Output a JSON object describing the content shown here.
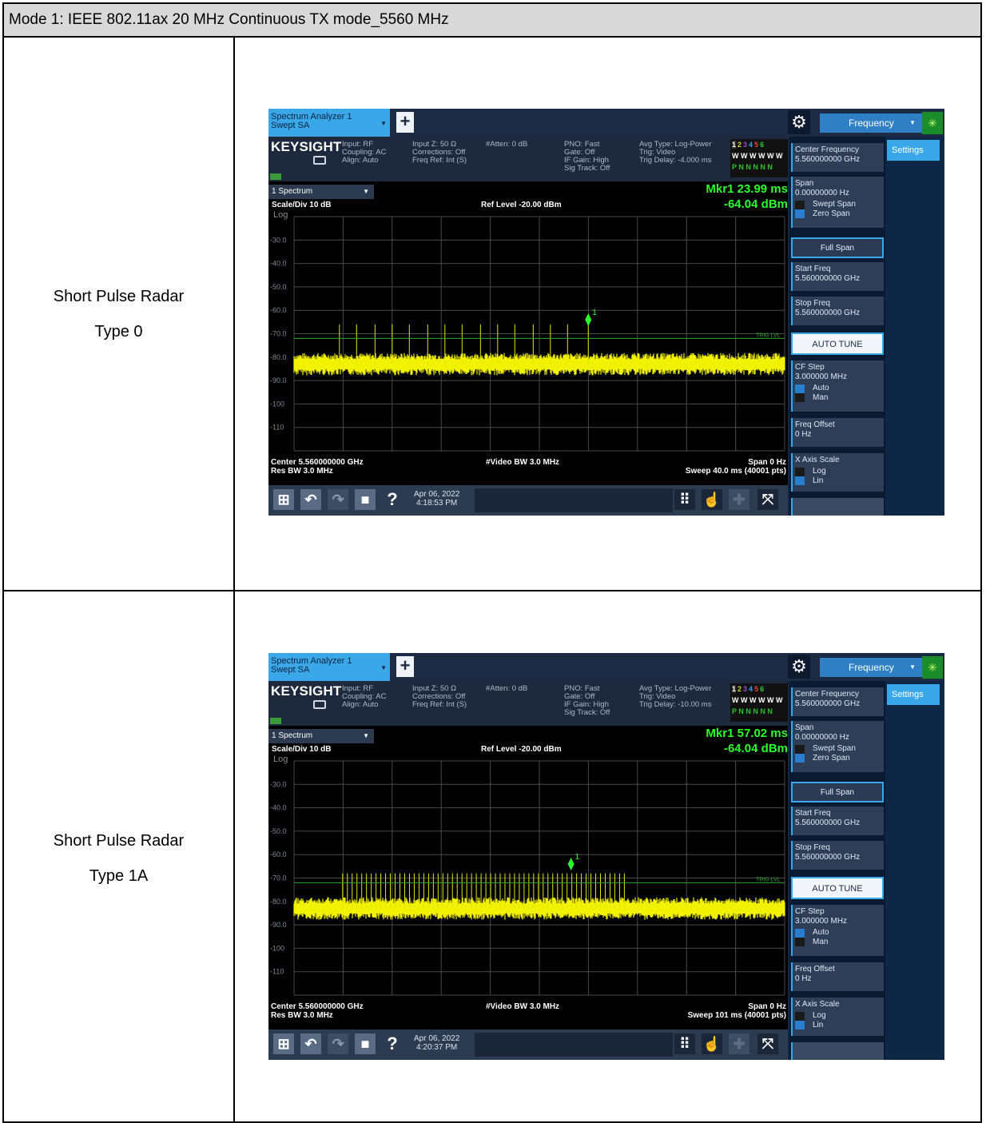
{
  "document": {
    "title": "Mode 1: IEEE 802.11ax 20 MHz Continuous TX mode_5560 MHz",
    "rows": [
      {
        "label_line1": "Short Pulse Radar",
        "label_line2": "Type 0"
      },
      {
        "label_line1": "Short Pulse Radar",
        "label_line2": "Type 1A"
      }
    ]
  },
  "analyzers": [
    {
      "tab_title": "Spectrum Analyzer 1",
      "tab_subtitle": "Swept SA",
      "menu_label": "Frequency",
      "brand": "KEYSIGHT",
      "info_col1": "Input: RF\nCoupling: AC\nAlign: Auto",
      "info_col2": "Input Z: 50 Ω\nCorrections: Off\nFreq Ref: Int (S)",
      "info_col3": "#Atten: 0 dB",
      "info_col4": "PNO: Fast\nGate: Off\nIF Gain: High\nSig Track: Off",
      "info_col5": "Avg Type: Log-Power\nTrig: Video\nTrig Delay: -4.000 ms",
      "trace_numbers": [
        "1",
        "2",
        "3",
        "4",
        "5",
        "6"
      ],
      "trace_row2": "W W W W W W",
      "trace_row3": "P N N N N N",
      "window_select": "1 Spectrum",
      "scale_div": "Scale/Div 10 dB",
      "log_label": "Log",
      "ref_level": "Ref Level -20.00 dBm",
      "marker_time": "Mkr1  23.99 ms",
      "marker_level": "-64.04 dBm",
      "footer_center": "Center 5.560000000 GHz",
      "footer_rbw": "Res BW 3.0 MHz",
      "footer_vbw": "#Video BW 3.0 MHz",
      "footer_span": "Span 0 Hz",
      "footer_sweep": "Sweep 40.0 ms (40001 pts)",
      "date": "Apr 06, 2022",
      "time": "4:18:53 PM",
      "settings_tab": "Settings",
      "center_freq_label": "Center Frequency",
      "center_freq_value": "5.560000000 GHz",
      "span_label": "Span",
      "span_value": "0.00000000 Hz",
      "swept_span": "Swept Span",
      "zero_span": "Zero Span",
      "full_span": "Full Span",
      "start_freq_label": "Start Freq",
      "start_freq_value": "5.560000000 GHz",
      "stop_freq_label": "Stop Freq",
      "stop_freq_value": "5.560000000 GHz",
      "auto_tune": "AUTO TUNE",
      "cf_step_label": "CF Step",
      "cf_step_value": "3.000000 MHz",
      "auto": "Auto",
      "man": "Man",
      "freq_offset_label": "Freq Offset",
      "freq_offset_value": "0 Hz",
      "x_axis_scale_label": "X Axis Scale",
      "log": "Log",
      "lin": "Lin",
      "trig_lvl": "TRIG LVL",
      "marker_id": "1",
      "y_ticks": [
        "-30.0",
        "-40.0",
        "-50.0",
        "-60.0",
        "-70.0",
        "-80.0",
        "-90.0",
        "-100",
        "-110"
      ],
      "chart_data": {
        "type": "line",
        "ylim": [
          -120,
          -20
        ],
        "xlim": [
          0,
          40.0
        ],
        "x_unit": "ms",
        "noise_floor_dbm": -83,
        "trigger_level_dbm": -72,
        "pulse_times_ms": [
          3.7,
          5.1,
          6.6,
          8.0,
          9.4,
          10.9,
          12.3,
          13.7,
          15.2,
          16.6,
          18.0,
          19.5,
          20.9,
          22.3,
          23.99
        ],
        "pulse_peak_dbm": -66,
        "marker": {
          "x": 23.99,
          "y": -64.04
        }
      }
    },
    {
      "tab_title": "Spectrum Analyzer 1",
      "tab_subtitle": "Swept SA",
      "menu_label": "Frequency",
      "brand": "KEYSIGHT",
      "info_col1": "Input: RF\nCoupling: AC\nAlign: Auto",
      "info_col2": "Input Z: 50 Ω\nCorrections: Off\nFreq Ref: Int (S)",
      "info_col3": "#Atten: 0 dB",
      "info_col4": "PNO: Fast\nGate: Off\nIF Gain: High\nSig Track: Off",
      "info_col5": "Avg Type: Log-Power\nTrig: Video\nTrig Delay: -10.00 ms",
      "trace_numbers": [
        "1",
        "2",
        "3",
        "4",
        "5",
        "6"
      ],
      "trace_row2": "W W W W W W",
      "trace_row3": "P N N N N N",
      "window_select": "1 Spectrum",
      "scale_div": "Scale/Div 10 dB",
      "log_label": "Log",
      "ref_level": "Ref Level -20.00 dBm",
      "marker_time": "Mkr1  57.02 ms",
      "marker_level": "-64.04 dBm",
      "footer_center": "Center 5.560000000 GHz",
      "footer_rbw": "Res BW 3.0 MHz",
      "footer_vbw": "#Video BW 3.0 MHz",
      "footer_span": "Span 0 Hz",
      "footer_sweep": "Sweep 101 ms (40001 pts)",
      "date": "Apr 06, 2022",
      "time": "4:20:37 PM",
      "settings_tab": "Settings",
      "center_freq_label": "Center Frequency",
      "center_freq_value": "5.560000000 GHz",
      "span_label": "Span",
      "span_value": "0.00000000 Hz",
      "swept_span": "Swept Span",
      "zero_span": "Zero Span",
      "full_span": "Full Span",
      "start_freq_label": "Start Freq",
      "start_freq_value": "5.560000000 GHz",
      "stop_freq_label": "Stop Freq",
      "stop_freq_value": "5.560000000 GHz",
      "auto_tune": "AUTO TUNE",
      "cf_step_label": "CF Step",
      "cf_step_value": "3.000000 MHz",
      "auto": "Auto",
      "man": "Man",
      "freq_offset_label": "Freq Offset",
      "freq_offset_value": "0 Hz",
      "x_axis_scale_label": "X Axis Scale",
      "log": "Log",
      "lin": "Lin",
      "trig_lvl": "TRIG LVL",
      "marker_id": "1",
      "y_ticks": [
        "-30.0",
        "-40.0",
        "-50.0",
        "-60.0",
        "-70.0",
        "-80.0",
        "-90.0",
        "-100",
        "-110"
      ],
      "chart_data": {
        "type": "line",
        "ylim": [
          -120,
          -20
        ],
        "xlim": [
          0,
          101
        ],
        "x_unit": "ms",
        "noise_floor_dbm": -83,
        "trigger_level_dbm": -72,
        "pulse_train_start_ms": 10,
        "pulse_train_end_ms": 68,
        "pulse_count": 60,
        "pulse_peak_dbm": -68,
        "marker": {
          "x": 57.02,
          "y": -64.04
        }
      }
    }
  ]
}
